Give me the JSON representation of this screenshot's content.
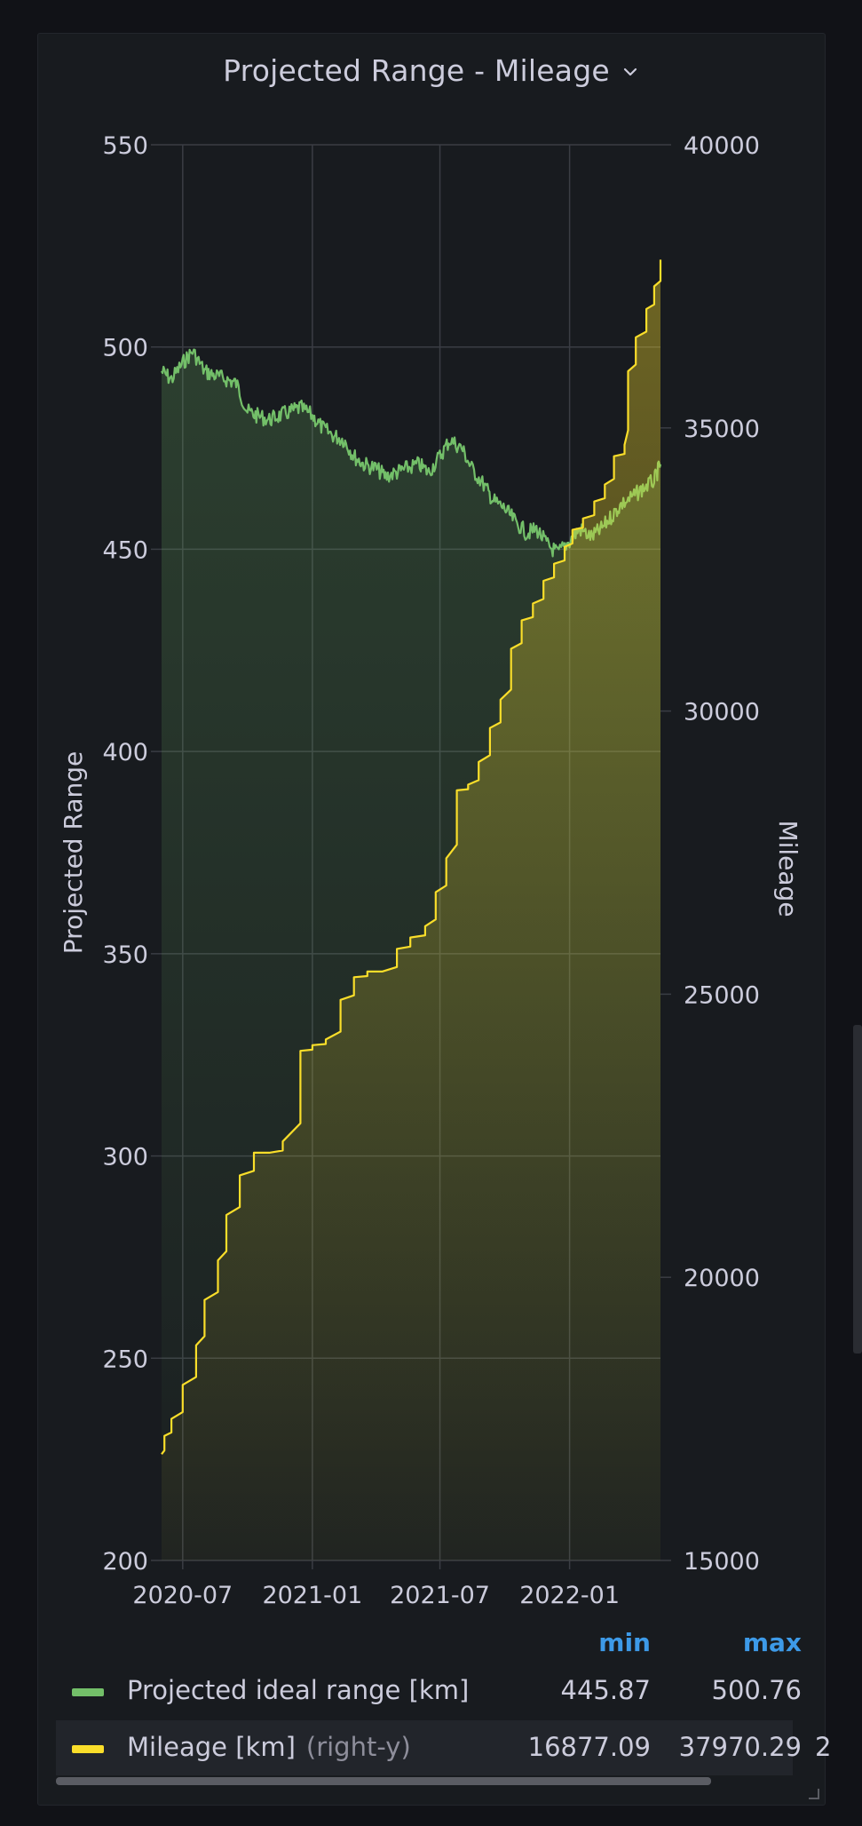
{
  "panel": {
    "title": "Projected Range - Mileage",
    "menu_icon": "chevron-down-icon"
  },
  "colors": {
    "background": "#111217",
    "panel": "#181b1f",
    "grid": "#3a3d44",
    "range_series": "#73bf69",
    "mileage_series": "#fade2a",
    "legend_header": "#3d9ae8"
  },
  "chart_data": {
    "type": "line",
    "title": "Projected Range - Mileage",
    "xlabel": "",
    "x_ticks": [
      "2020-07",
      "2021-01",
      "2021-07",
      "2022-01"
    ],
    "x_range": [
      "2020-06-01",
      "2022-05-10"
    ],
    "y_left": {
      "label": "Projected Range",
      "ticks": [
        200,
        250,
        300,
        350,
        400,
        450,
        500,
        550
      ],
      "ylim": [
        200,
        550
      ]
    },
    "y_right": {
      "label": "Mileage",
      "ticks": [
        15000,
        20000,
        25000,
        30000,
        35000,
        40000
      ],
      "ylim": [
        15000,
        40000
      ]
    },
    "grid": true,
    "legend_placement": "bottom",
    "series": [
      {
        "name": "Projected ideal range [km]",
        "axis": "left",
        "color": "#73bf69",
        "x": [
          "2020-06-01",
          "2020-06-15",
          "2020-07-01",
          "2020-07-15",
          "2020-08-01",
          "2020-08-15",
          "2020-09-01",
          "2020-09-15",
          "2020-10-01",
          "2020-10-15",
          "2020-11-01",
          "2020-11-15",
          "2020-12-01",
          "2020-12-15",
          "2021-01-01",
          "2021-01-15",
          "2021-02-01",
          "2021-02-15",
          "2021-03-01",
          "2021-03-15",
          "2021-04-01",
          "2021-04-15",
          "2021-05-01",
          "2021-05-15",
          "2021-06-01",
          "2021-06-15",
          "2021-07-01",
          "2021-07-15",
          "2021-08-01",
          "2021-08-15",
          "2021-09-01",
          "2021-09-15",
          "2021-10-01",
          "2021-10-15",
          "2021-11-01",
          "2021-11-15",
          "2021-12-01",
          "2021-12-15",
          "2022-01-01",
          "2022-01-15",
          "2022-02-01",
          "2022-02-15",
          "2022-03-01",
          "2022-03-15",
          "2022-04-01",
          "2022-04-15",
          "2022-05-01",
          "2022-05-10"
        ],
        "y": [
          494,
          492,
          496,
          499,
          494,
          493,
          492,
          491,
          484,
          483,
          482,
          483,
          484,
          485,
          483,
          480,
          478,
          477,
          473,
          471,
          470,
          468,
          469,
          470,
          471,
          469,
          473,
          477,
          475,
          470,
          466,
          462,
          460,
          457,
          454,
          455,
          451,
          449,
          452,
          455,
          453,
          455,
          458,
          461,
          463,
          465,
          467,
          471
        ]
      },
      {
        "name": "Mileage [km]",
        "axis": "right",
        "axis_note": "(right-y)",
        "color": "#fade2a",
        "x": [
          "2020-06-01",
          "2020-06-05",
          "2020-06-15",
          "2020-07-01",
          "2020-07-20",
          "2020-08-01",
          "2020-08-20",
          "2020-09-01",
          "2020-09-20",
          "2020-10-10",
          "2020-11-01",
          "2020-11-20",
          "2020-12-15",
          "2021-01-01",
          "2021-01-20",
          "2021-02-10",
          "2021-03-01",
          "2021-03-20",
          "2021-04-10",
          "2021-05-01",
          "2021-05-20",
          "2021-06-10",
          "2021-06-25",
          "2021-07-10",
          "2021-07-25",
          "2021-08-10",
          "2021-08-25",
          "2021-09-10",
          "2021-09-25",
          "2021-10-10",
          "2021-10-25",
          "2021-11-10",
          "2021-11-25",
          "2021-12-10",
          "2021-12-25",
          "2022-01-05",
          "2022-01-20",
          "2022-02-05",
          "2022-02-20",
          "2022-03-05",
          "2022-03-20",
          "2022-03-25",
          "2022-04-05",
          "2022-04-20",
          "2022-05-01",
          "2022-05-10"
        ],
        "y": [
          16877,
          17200,
          17500,
          18100,
          18800,
          19600,
          20300,
          21100,
          21800,
          22200,
          22200,
          22400,
          24000,
          24100,
          24200,
          24900,
          25300,
          25400,
          25400,
          25800,
          26000,
          26200,
          26800,
          27400,
          28600,
          28700,
          29100,
          29700,
          30200,
          31100,
          31600,
          31900,
          32300,
          32600,
          32900,
          33200,
          33400,
          33700,
          34000,
          34500,
          34700,
          36000,
          36600,
          37100,
          37500,
          37970
        ]
      }
    ]
  },
  "legend": {
    "columns": [
      "min",
      "max"
    ],
    "rows": [
      {
        "name": "Projected ideal range [km]",
        "axis_note": "",
        "min": "445.87",
        "max": "500.76"
      },
      {
        "name": "Mileage [km]",
        "axis_note": "(right-y)",
        "min": "16877.09",
        "max": "37970.29",
        "overflow": "2"
      }
    ]
  }
}
